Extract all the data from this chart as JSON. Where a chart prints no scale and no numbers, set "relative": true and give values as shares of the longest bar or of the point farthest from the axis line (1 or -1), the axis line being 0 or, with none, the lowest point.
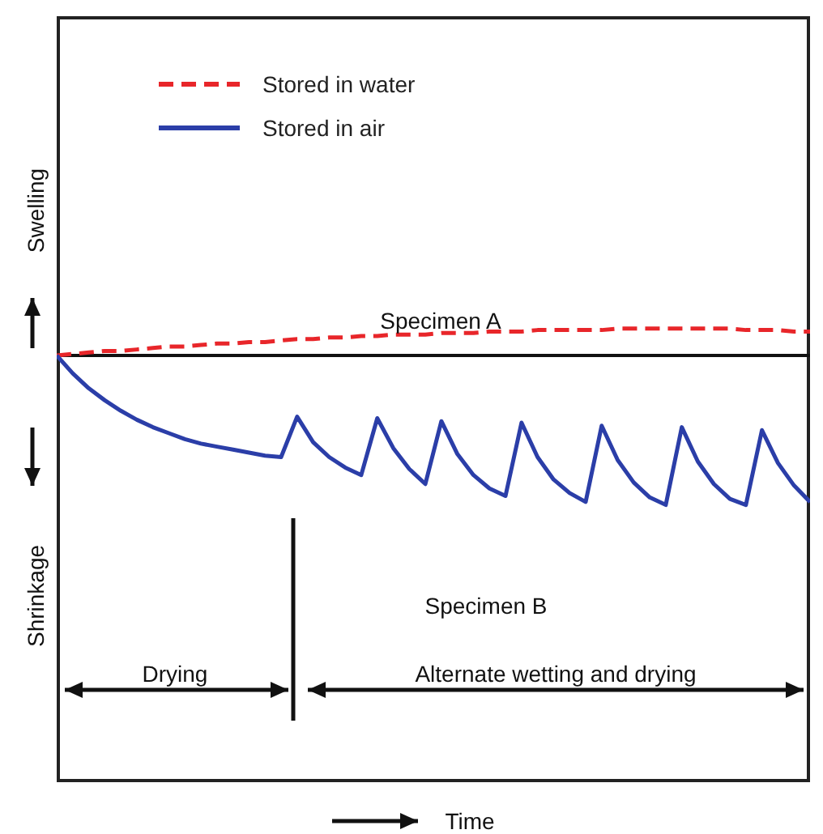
{
  "chart_data": {
    "type": "line",
    "relative": true,
    "legend": "top left",
    "marker": "none",
    "annotations": [
      "Specimen A",
      "Specimen B",
      "Drying",
      "Alternate wetting and drying",
      "Swelling",
      "Shrinkage",
      "Time"
    ],
    "categories": [
      null,
      null,
      null,
      null,
      null,
      null,
      null,
      null,
      null,
      null,
      null,
      null,
      null,
      null,
      null,
      null,
      null,
      null,
      null,
      null,
      null,
      null,
      null,
      null,
      null,
      null,
      null,
      null,
      null,
      null,
      null,
      null,
      null,
      null,
      null,
      null,
      null,
      null,
      null,
      null,
      null,
      null,
      null,
      null,
      null,
      null,
      null,
      null
    ],
    "series": [
      {
        "name": "Stored in water",
        "color": "#e8262a",
        "line_style": "dashed",
        "values": [
          0,
          0.01,
          0.02,
          0.03,
          0.03,
          0.04,
          0.05,
          0.06,
          0.06,
          0.07,
          0.08,
          0.08,
          0.09,
          0.09,
          0.1,
          0.11,
          0.11,
          0.12,
          0.12,
          0.13,
          0.13,
          0.14,
          0.14,
          0.14,
          0.15,
          0.15,
          0.15,
          0.16,
          0.16,
          0.16,
          0.17,
          0.17,
          0.17,
          0.17,
          0.17,
          0.18,
          0.18,
          0.18,
          0.18,
          0.18,
          0.18,
          0.18,
          0.18,
          0.17,
          0.17,
          0.17,
          0.16,
          0.16
        ]
      },
      {
        "name": "Stored in air",
        "color": "#2b3ea8",
        "line_style": "solid",
        "values": [
          0,
          -0.12,
          -0.22,
          -0.3,
          -0.37,
          -0.43,
          -0.48,
          -0.52,
          -0.56,
          -0.59,
          -0.61,
          -0.63,
          -0.65,
          -0.67,
          -0.68,
          -0.41,
          -0.58,
          -0.68,
          -0.75,
          -0.8,
          -0.42,
          -0.62,
          -0.76,
          -0.86,
          -0.44,
          -0.66,
          -0.8,
          -0.89,
          -0.94,
          -0.45,
          -0.68,
          -0.83,
          -0.92,
          -0.98,
          -0.47,
          -0.7,
          -0.85,
          -0.95,
          -1,
          -0.48,
          -0.71,
          -0.86,
          -0.96,
          -1,
          -0.5,
          -0.72,
          -0.87,
          -0.98
        ]
      }
    ]
  }
}
